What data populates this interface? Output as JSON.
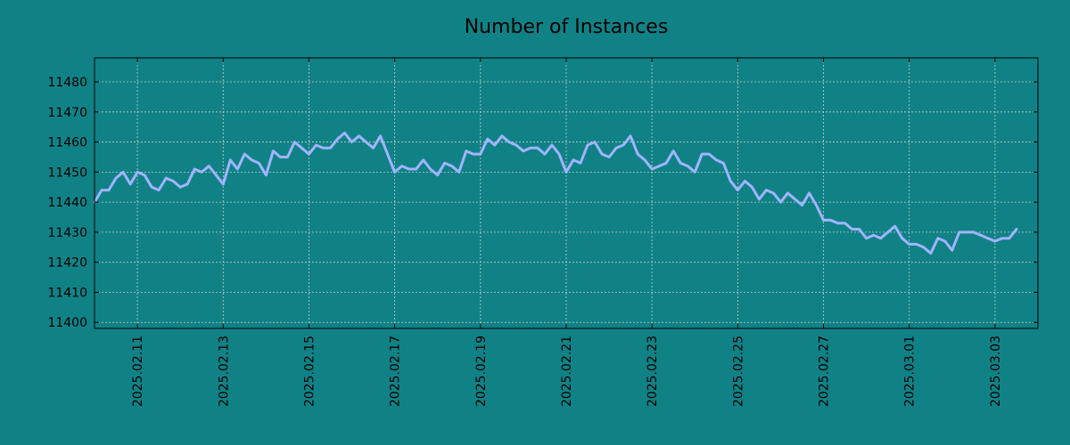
{
  "chart_data": {
    "type": "line",
    "title": "Number of Instances",
    "xlabel": "",
    "ylabel": "",
    "x_start": "2025-02-10",
    "x_step_hours": 4,
    "xlim": [
      "2025-02-10",
      "2025-03-04"
    ],
    "ylim": [
      11398,
      11488
    ],
    "x_ticks": [
      "2025.02.11",
      "2025.02.13",
      "2025.02.15",
      "2025.02.17",
      "2025.02.19",
      "2025.02.21",
      "2025.02.23",
      "2025.02.25",
      "2025.02.27",
      "2025.03.01",
      "2025.03.03"
    ],
    "y_ticks": [
      11400,
      11410,
      11420,
      11430,
      11440,
      11450,
      11460,
      11470,
      11480
    ],
    "grid": true,
    "series": [
      {
        "color": "#a0b4ff",
        "values": [
          11440,
          11444,
          11444,
          11448,
          11450,
          11446,
          11450,
          11449,
          11445,
          11444,
          11448,
          11447,
          11445,
          11446,
          11451,
          11450,
          11452,
          11449,
          11446,
          11454,
          11451,
          11456,
          11454,
          11453,
          11449,
          11457,
          11455,
          11455,
          11460,
          11458,
          11456,
          11459,
          11458,
          11458,
          11461,
          11463,
          11460,
          11462,
          11460,
          11458,
          11462,
          11456,
          11450,
          11452,
          11451,
          11451,
          11454,
          11451,
          11449,
          11453,
          11452,
          11450,
          11457,
          11456,
          11456,
          11461,
          11459,
          11462,
          11460,
          11459,
          11457,
          11458,
          11458,
          11456,
          11459,
          11456,
          11450,
          11454,
          11453,
          11459,
          11460,
          11456,
          11455,
          11458,
          11459,
          11462,
          11456,
          11454,
          11451,
          11452,
          11453,
          11457,
          11453,
          11452,
          11450,
          11456,
          11456,
          11454,
          11453,
          11447,
          11444,
          11447,
          11445,
          11441,
          11444,
          11443,
          11440,
          11443,
          11441,
          11439,
          11443,
          11439,
          11434,
          11434,
          11433,
          11433,
          11431,
          11431,
          11428,
          11429,
          11428,
          11430,
          11432,
          11428,
          11426,
          11426,
          11425,
          11423,
          11428,
          11427,
          11424,
          11430,
          11430,
          11430,
          11429,
          11428,
          11427,
          11428,
          11428,
          11431
        ]
      }
    ]
  }
}
